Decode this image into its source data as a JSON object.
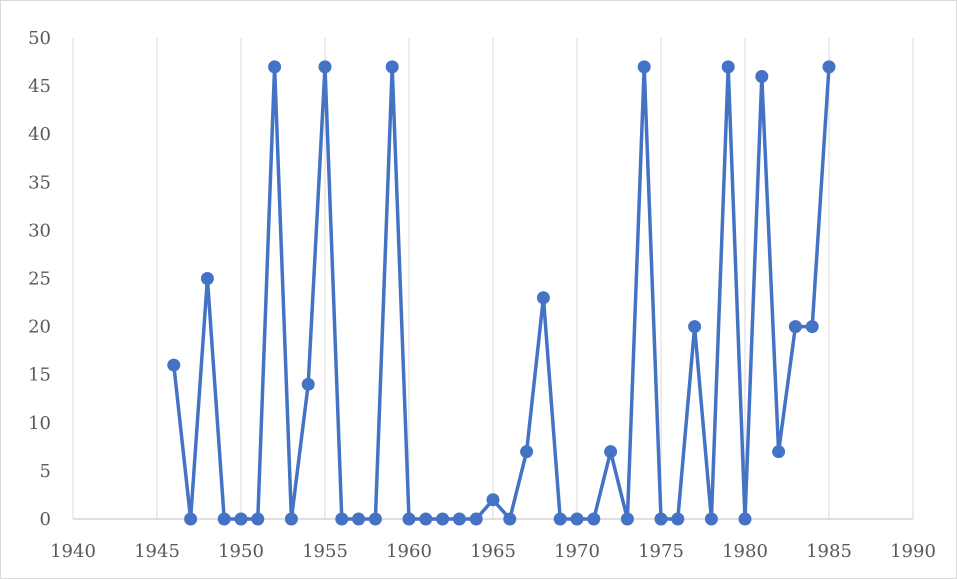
{
  "chart_data": {
    "type": "scatter",
    "title": "",
    "xlabel": "",
    "ylabel": "",
    "xlim": [
      1940,
      1990
    ],
    "ylim": [
      0,
      50
    ],
    "x_ticks": [
      1940,
      1945,
      1950,
      1955,
      1960,
      1965,
      1970,
      1975,
      1980,
      1985,
      1990
    ],
    "y_ticks": [
      0,
      5,
      10,
      15,
      20,
      25,
      30,
      35,
      40,
      45,
      50
    ],
    "x_tick_labels": [
      "1940",
      "1945",
      "1950",
      "1955",
      "1960",
      "1965",
      "1970",
      "1975",
      "1980",
      "1985",
      "1990"
    ],
    "y_tick_labels": [
      "0",
      "5",
      "10",
      "15",
      "20",
      "25",
      "30",
      "35",
      "40",
      "45",
      "50"
    ],
    "vertical_gridlines": true,
    "horizontal_gridlines": false,
    "legend": "none",
    "series": [
      {
        "color": "#4472C4",
        "lines": true,
        "markers": "circle",
        "x": [
          1946,
          1947,
          1948,
          1949,
          1950,
          1951,
          1952,
          1953,
          1954,
          1955,
          1956,
          1957,
          1958,
          1959,
          1960,
          1961,
          1962,
          1963,
          1964,
          1965,
          1966,
          1967,
          1968,
          1969,
          1970,
          1971,
          1972,
          1973,
          1974,
          1975,
          1976,
          1977,
          1978,
          1979,
          1980,
          1981,
          1982,
          1983,
          1984,
          1985
        ],
        "y": [
          16,
          0,
          25,
          0,
          0,
          0,
          47,
          0,
          14,
          47,
          0,
          0,
          0,
          47,
          0,
          0,
          0,
          0,
          0,
          2,
          0,
          7,
          23,
          0,
          0,
          0,
          7,
          0,
          47,
          0,
          0,
          20,
          0,
          47,
          0,
          46,
          7,
          20,
          20,
          47
        ]
      }
    ]
  }
}
